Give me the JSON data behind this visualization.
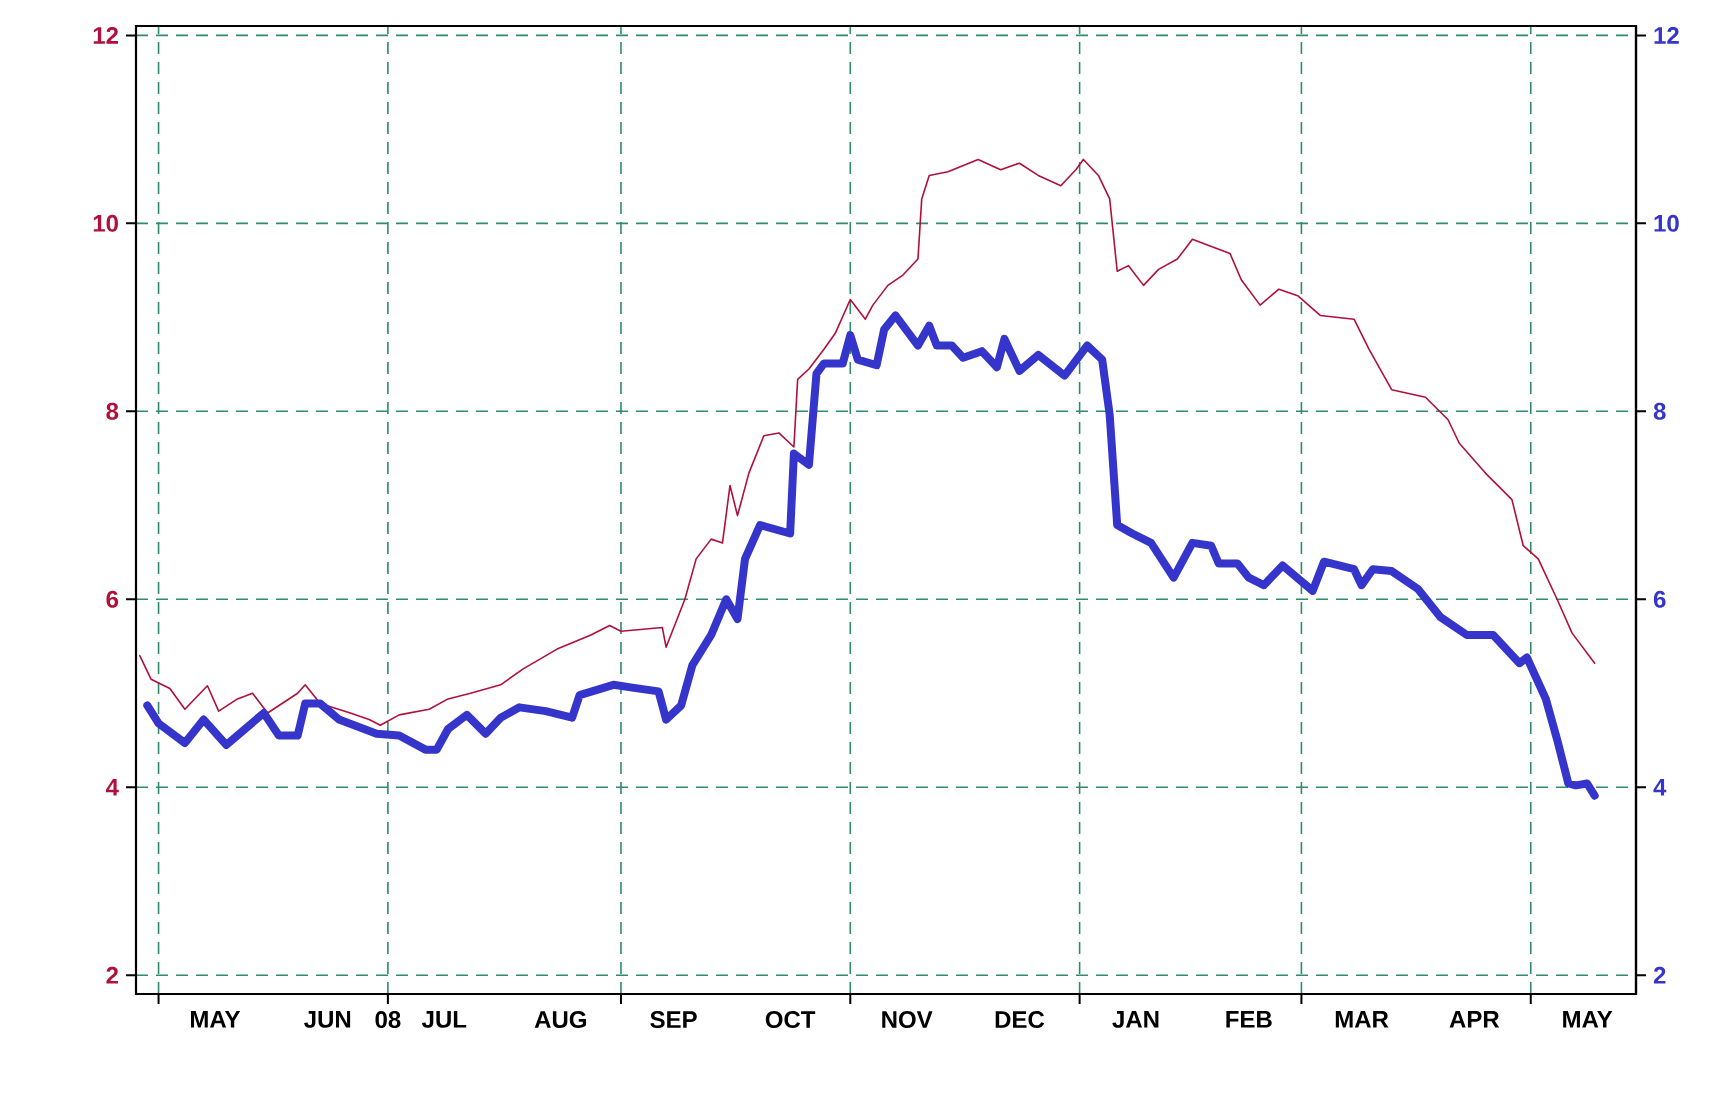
{
  "chart_data": {
    "type": "line",
    "xlim": [
      "2008-04-25",
      "2009-05-29"
    ],
    "ylim": [
      1.8,
      12.1
    ],
    "yticks": [
      2,
      4,
      6,
      8,
      10,
      12
    ],
    "y2lim": [
      1.8,
      12.1
    ],
    "y2ticks": [
      2,
      4,
      6,
      8,
      10,
      12
    ],
    "grid": true,
    "marker": "none",
    "line_style": "solid",
    "xticks": [
      {
        "value": "2008-05-01",
        "label": null
      },
      {
        "value": "2008-05-16",
        "label": "MAY"
      },
      {
        "value": "2008-06-15",
        "label": "JUN"
      },
      {
        "value": "2008-07-01",
        "label": "08"
      },
      {
        "value": "2008-07-16",
        "label": "JUL"
      },
      {
        "value": "2008-08-16",
        "label": "AUG"
      },
      {
        "value": "2008-09-01",
        "label": null
      },
      {
        "value": "2008-09-15",
        "label": "SEP"
      },
      {
        "value": "2008-10-16",
        "label": "OCT"
      },
      {
        "value": "2008-11-01",
        "label": null
      },
      {
        "value": "2008-11-16",
        "label": "NOV"
      },
      {
        "value": "2008-12-16",
        "label": "DEC"
      },
      {
        "value": "2009-01-01",
        "label": null
      },
      {
        "value": "2009-01-16",
        "label": "JAN"
      },
      {
        "value": "2009-02-15",
        "label": "FEB"
      },
      {
        "value": "2009-03-01",
        "label": null
      },
      {
        "value": "2009-03-17",
        "label": "MAR"
      },
      {
        "value": "2009-04-16",
        "label": "APR"
      },
      {
        "value": "2009-05-01",
        "label": null
      },
      {
        "value": "2009-05-16",
        "label": "MAY"
      }
    ],
    "series": [
      {
        "color": "#b0103a",
        "x": [
          "2008-04-26",
          "2008-04-29",
          "2008-05-04",
          "2008-05-08",
          "2008-05-14",
          "2008-05-17",
          "2008-05-22",
          "2008-05-26",
          "2008-05-30",
          "2008-06-07",
          "2008-06-09",
          "2008-06-13",
          "2008-06-21",
          "2008-06-26",
          "2008-06-29",
          "2008-07-04",
          "2008-07-12",
          "2008-07-17",
          "2008-07-23",
          "2008-07-31",
          "2008-08-06",
          "2008-08-15",
          "2008-08-24",
          "2008-08-29",
          "2008-09-01",
          "2008-09-12",
          "2008-09-13",
          "2008-09-18",
          "2008-09-21",
          "2008-09-25",
          "2008-09-28",
          "2008-09-30",
          "2008-10-02",
          "2008-10-05",
          "2008-10-09",
          "2008-10-13",
          "2008-10-17",
          "2008-10-18",
          "2008-10-21",
          "2008-10-25",
          "2008-10-28",
          "2008-11-01",
          "2008-11-05",
          "2008-11-07",
          "2008-11-11",
          "2008-11-15",
          "2008-11-19",
          "2008-11-20",
          "2008-11-22",
          "2008-11-27",
          "2008-12-05",
          "2008-12-11",
          "2008-12-16",
          "2008-12-21",
          "2008-12-27",
          "2008-12-31",
          "2009-01-02",
          "2009-01-06",
          "2009-01-09",
          "2009-01-11",
          "2009-01-14",
          "2009-01-18",
          "2009-01-22",
          "2009-01-27",
          "2009-01-31",
          "2009-02-04",
          "2009-02-10",
          "2009-02-13",
          "2009-02-18",
          "2009-02-23",
          "2009-02-28",
          "2009-03-06",
          "2009-03-15",
          "2009-03-19",
          "2009-03-25",
          "2009-04-03",
          "2009-04-09",
          "2009-04-12",
          "2009-04-19",
          "2009-04-26",
          "2009-04-29",
          "2009-05-03",
          "2009-05-08",
          "2009-05-12",
          "2009-05-18"
        ],
        "values": [
          5.4,
          5.15,
          5.05,
          4.83,
          5.08,
          4.81,
          4.94,
          5.0,
          4.79,
          5.0,
          5.09,
          4.89,
          4.79,
          4.72,
          4.66,
          4.77,
          4.83,
          4.94,
          5.0,
          5.09,
          5.26,
          5.47,
          5.62,
          5.72,
          5.66,
          5.7,
          5.49,
          6.0,
          6.43,
          6.64,
          6.6,
          7.21,
          6.89,
          7.34,
          7.74,
          7.77,
          7.62,
          8.34,
          8.45,
          8.66,
          8.83,
          9.19,
          8.98,
          9.13,
          9.34,
          9.45,
          9.62,
          10.26,
          10.51,
          10.55,
          10.68,
          10.57,
          10.64,
          10.51,
          10.4,
          10.57,
          10.68,
          10.51,
          10.26,
          9.49,
          9.55,
          9.34,
          9.51,
          9.62,
          9.83,
          9.77,
          9.68,
          9.4,
          9.13,
          9.3,
          9.23,
          9.02,
          8.98,
          8.66,
          8.23,
          8.15,
          7.91,
          7.66,
          7.34,
          7.06,
          6.57,
          6.43,
          6.0,
          5.64,
          5.32
        ]
      },
      {
        "color": "#3535cc",
        "axis": "y2",
        "x": [
          "2008-04-28",
          "2008-05-01",
          "2008-05-08",
          "2008-05-13",
          "2008-05-19",
          "2008-05-29",
          "2008-06-02",
          "2008-06-07",
          "2008-06-09",
          "2008-06-13",
          "2008-06-18",
          "2008-06-28",
          "2008-07-04",
          "2008-07-11",
          "2008-07-14",
          "2008-07-17",
          "2008-07-22",
          "2008-07-27",
          "2008-07-31",
          "2008-08-05",
          "2008-08-12",
          "2008-08-19",
          "2008-08-21",
          "2008-08-30",
          "2008-09-04",
          "2008-09-11",
          "2008-09-13",
          "2008-09-17",
          "2008-09-20",
          "2008-09-25",
          "2008-09-29",
          "2008-10-02",
          "2008-10-04",
          "2008-10-08",
          "2008-10-16",
          "2008-10-17",
          "2008-10-21",
          "2008-10-23",
          "2008-10-25",
          "2008-10-30",
          "2008-11-01",
          "2008-11-03",
          "2008-11-08",
          "2008-11-10",
          "2008-11-13",
          "2008-11-19",
          "2008-11-22",
          "2008-11-24",
          "2008-11-28",
          "2008-12-01",
          "2008-12-06",
          "2008-12-10",
          "2008-12-12",
          "2008-12-16",
          "2008-12-21",
          "2008-12-28",
          "2009-01-03",
          "2009-01-07",
          "2009-01-09",
          "2009-01-11",
          "2009-01-15",
          "2009-01-20",
          "2009-01-26",
          "2009-01-31",
          "2009-02-05",
          "2009-02-07",
          "2009-02-12",
          "2009-02-15",
          "2009-02-19",
          "2009-02-24",
          "2009-03-04",
          "2009-03-07",
          "2009-03-15",
          "2009-03-17",
          "2009-03-20",
          "2009-03-25",
          "2009-04-01",
          "2009-04-07",
          "2009-04-14",
          "2009-04-21",
          "2009-04-28",
          "2009-04-30",
          "2009-05-05",
          "2009-05-08",
          "2009-05-11",
          "2009-05-13",
          "2009-05-16",
          "2009-05-18"
        ],
        "values": [
          4.87,
          4.68,
          4.47,
          4.72,
          4.45,
          4.79,
          4.55,
          4.55,
          4.89,
          4.89,
          4.72,
          4.57,
          4.55,
          4.4,
          4.4,
          4.62,
          4.77,
          4.57,
          4.74,
          4.85,
          4.81,
          4.74,
          4.98,
          5.09,
          5.06,
          5.02,
          4.72,
          4.87,
          5.3,
          5.62,
          6.0,
          5.79,
          6.43,
          6.79,
          6.7,
          7.55,
          7.43,
          8.4,
          8.51,
          8.51,
          8.81,
          8.55,
          8.49,
          8.87,
          9.02,
          8.7,
          8.91,
          8.7,
          8.7,
          8.57,
          8.64,
          8.47,
          8.77,
          8.43,
          8.6,
          8.38,
          8.7,
          8.55,
          7.96,
          6.79,
          6.7,
          6.6,
          6.23,
          6.6,
          6.57,
          6.38,
          6.38,
          6.23,
          6.15,
          6.36,
          6.09,
          6.4,
          6.32,
          6.15,
          6.32,
          6.3,
          6.11,
          5.81,
          5.62,
          5.62,
          5.32,
          5.38,
          4.94,
          4.51,
          4.04,
          4.02,
          4.04,
          3.91
        ]
      }
    ]
  }
}
